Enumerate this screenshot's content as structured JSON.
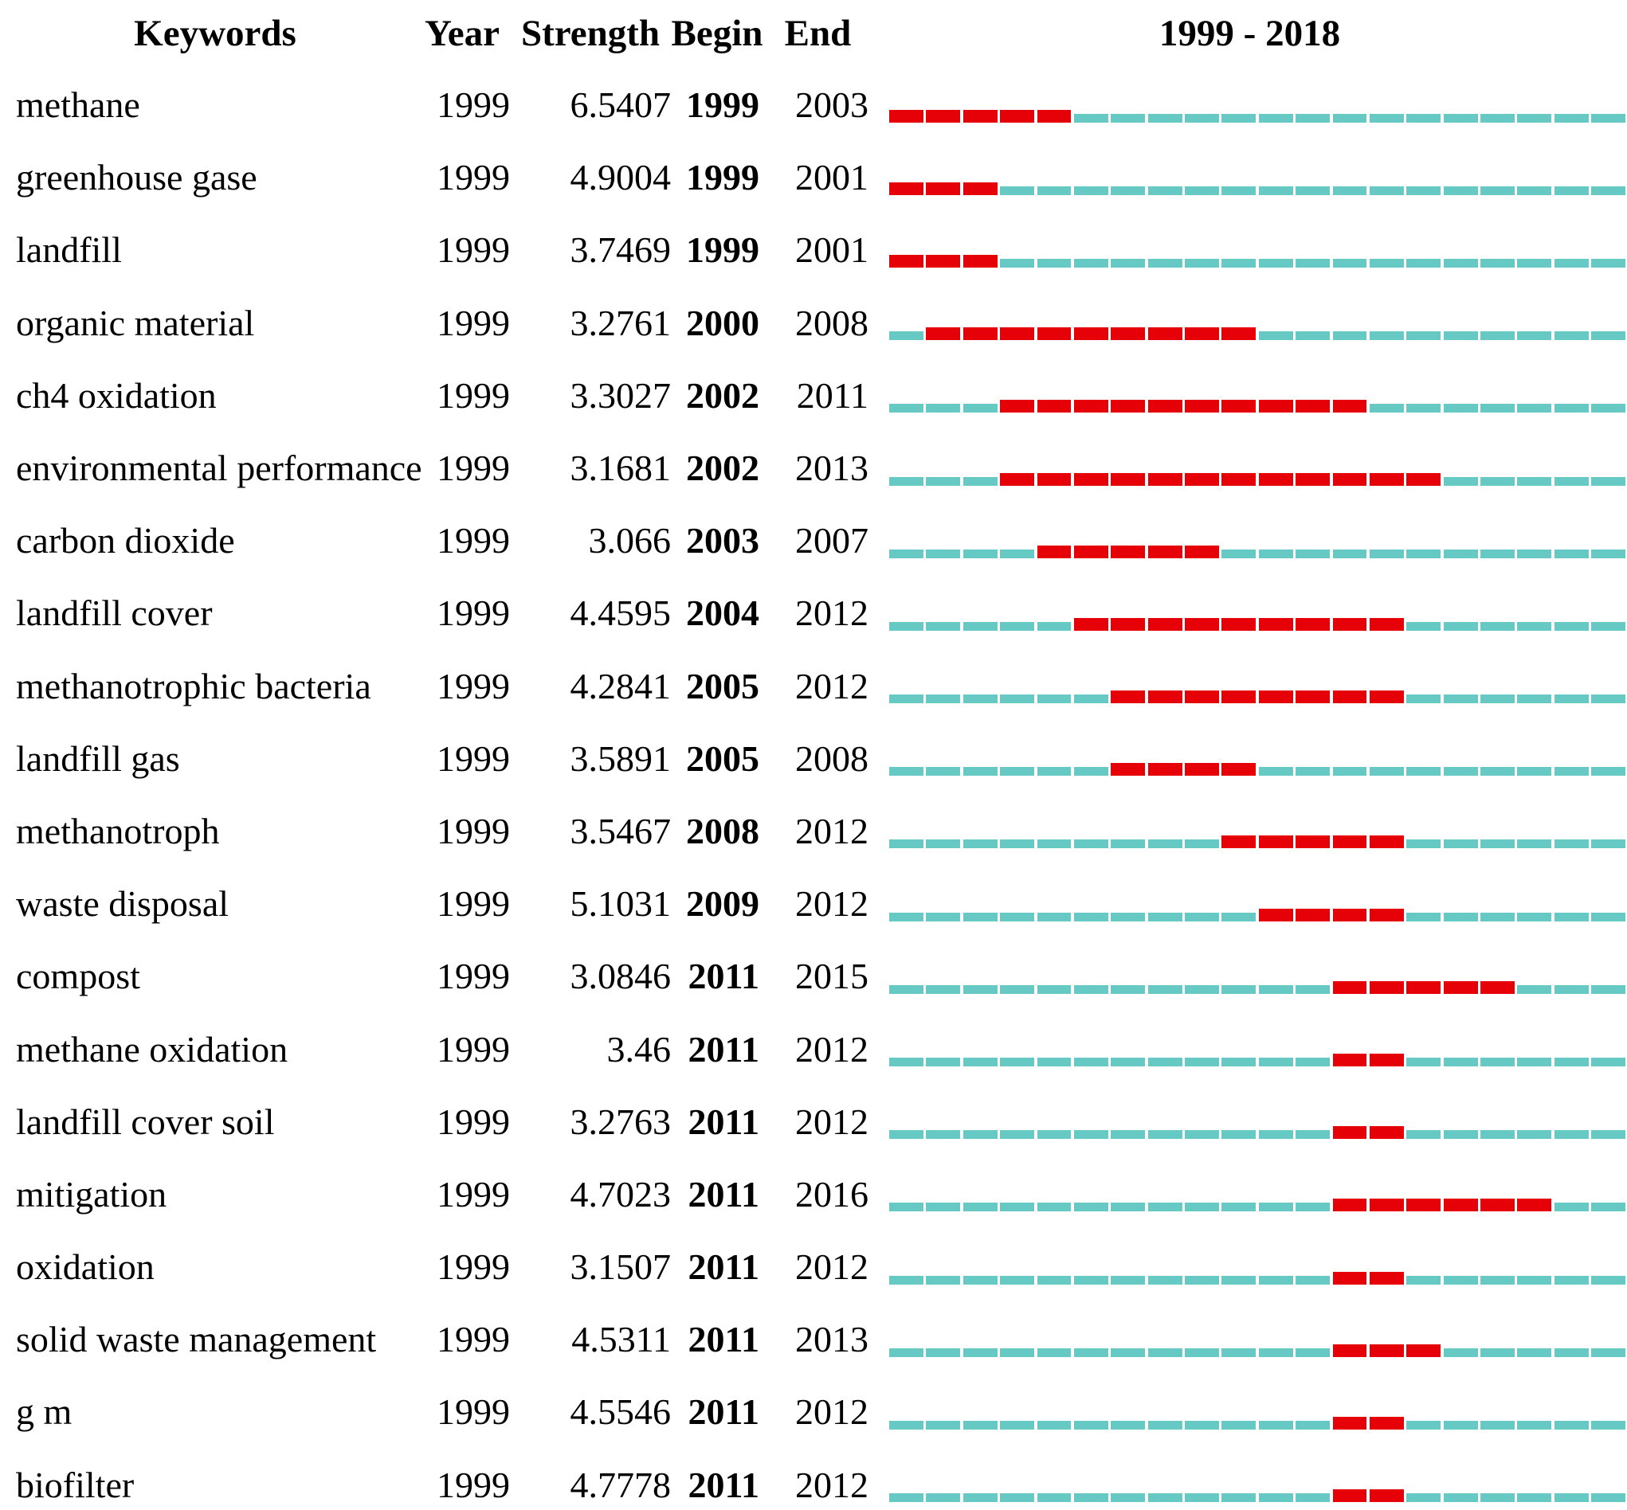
{
  "chart_data": {
    "type": "table",
    "description": "Keyword citation burst timeline table",
    "header": {
      "keywords": "Keywords",
      "year": "Year",
      "strength": "Strength",
      "begin": "Begin",
      "end": "End",
      "timeline": "1999 - 2018"
    },
    "timeline": {
      "start_year": 1999,
      "end_year": 2018
    },
    "colors": {
      "burst": "#e60008",
      "base": "#67c9c4",
      "text": "#000000",
      "background": "#ffffff"
    },
    "rows": [
      {
        "keyword": "methane",
        "year": "1999",
        "strength": "6.5407",
        "begin": 1999,
        "end": 2003
      },
      {
        "keyword": "greenhouse gase",
        "year": "1999",
        "strength": "4.9004",
        "begin": 1999,
        "end": 2001
      },
      {
        "keyword": "landfill",
        "year": "1999",
        "strength": "3.7469",
        "begin": 1999,
        "end": 2001
      },
      {
        "keyword": "organic material",
        "year": "1999",
        "strength": "3.2761",
        "begin": 2000,
        "end": 2008
      },
      {
        "keyword": "ch4 oxidation",
        "year": "1999",
        "strength": "3.3027",
        "begin": 2002,
        "end": 2011
      },
      {
        "keyword": "environmental performance",
        "year": "1999",
        "strength": "3.1681",
        "begin": 2002,
        "end": 2013
      },
      {
        "keyword": "carbon dioxide",
        "year": "1999",
        "strength": "3.066",
        "begin": 2003,
        "end": 2007
      },
      {
        "keyword": "landfill cover",
        "year": "1999",
        "strength": "4.4595",
        "begin": 2004,
        "end": 2012
      },
      {
        "keyword": "methanotrophic bacteria",
        "year": "1999",
        "strength": "4.2841",
        "begin": 2005,
        "end": 2012
      },
      {
        "keyword": "landfill gas",
        "year": "1999",
        "strength": "3.5891",
        "begin": 2005,
        "end": 2008
      },
      {
        "keyword": "methanotroph",
        "year": "1999",
        "strength": "3.5467",
        "begin": 2008,
        "end": 2012
      },
      {
        "keyword": "waste disposal",
        "year": "1999",
        "strength": "5.1031",
        "begin": 2009,
        "end": 2012
      },
      {
        "keyword": "compost",
        "year": "1999",
        "strength": "3.0846",
        "begin": 2011,
        "end": 2015
      },
      {
        "keyword": "methane oxidation",
        "year": "1999",
        "strength": "3.46",
        "begin": 2011,
        "end": 2012
      },
      {
        "keyword": "landfill cover soil",
        "year": "1999",
        "strength": "3.2763",
        "begin": 2011,
        "end": 2012
      },
      {
        "keyword": "mitigation",
        "year": "1999",
        "strength": "4.7023",
        "begin": 2011,
        "end": 2016
      },
      {
        "keyword": "oxidation",
        "year": "1999",
        "strength": "3.1507",
        "begin": 2011,
        "end": 2012
      },
      {
        "keyword": "solid waste management",
        "year": "1999",
        "strength": "4.5311",
        "begin": 2011,
        "end": 2013
      },
      {
        "keyword": "g m",
        "year": "1999",
        "strength": "4.5546",
        "begin": 2011,
        "end": 2012
      },
      {
        "keyword": "biofilter",
        "year": "1999",
        "strength": "4.7778",
        "begin": 2011,
        "end": 2012
      }
    ]
  }
}
